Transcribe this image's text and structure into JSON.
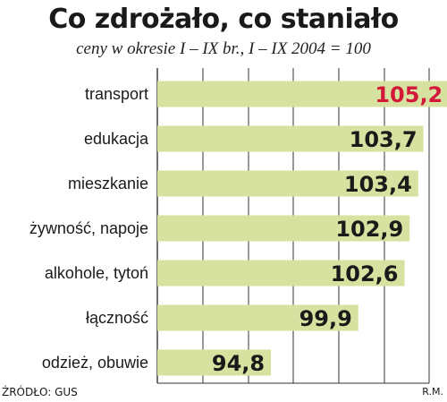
{
  "chart_data": {
    "type": "bar",
    "orientation": "horizontal",
    "title": "Co zdrożało, co staniało",
    "subtitle": "ceny w okresie I – IX br., I – IX 2004 = 100",
    "categories": [
      "transport",
      "edukacja",
      "mieszkanie",
      "żywność, napoje",
      "alkohole, tytoń",
      "łączność",
      "odzież, obuwie"
    ],
    "values": [
      105.2,
      103.7,
      103.4,
      102.9,
      102.6,
      99.9,
      94.8
    ],
    "value_labels": [
      "105,2",
      "103,7",
      "103,4",
      "102,9",
      "102,6",
      "99,9",
      "94,8"
    ],
    "highlight_index": 0,
    "grid": true,
    "colors": {
      "bar": "#d8e2a0",
      "highlight_text": "#d2193a",
      "text": "#1a1a1a",
      "grid": "#333333"
    }
  },
  "footer": {
    "source": "ŹRÓDŁO: GUS",
    "credit": "R.M."
  }
}
